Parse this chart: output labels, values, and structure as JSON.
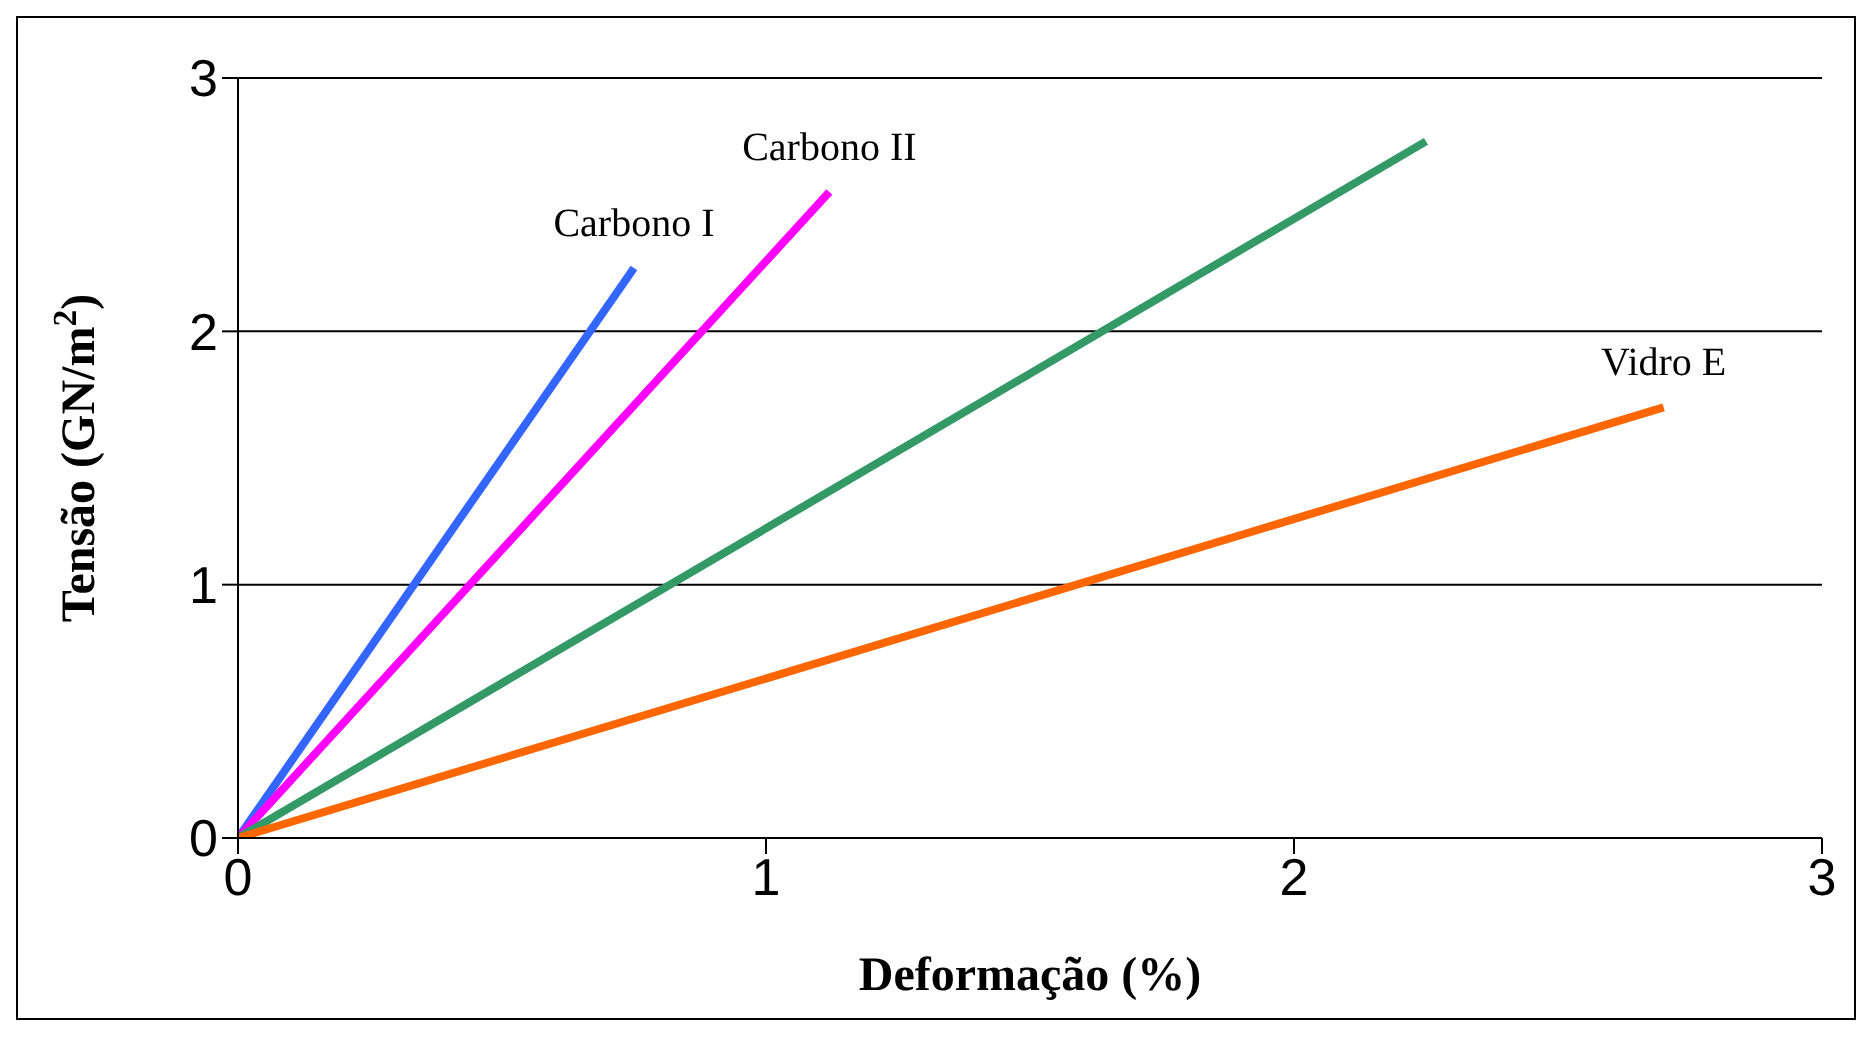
{
  "chart_data": {
    "type": "line",
    "xlabel": "Deformação (%)",
    "ylabel": "Tensão (GN/m$^{2}$)",
    "xlim": [
      0,
      3
    ],
    "xticks": [
      0,
      1,
      2,
      3
    ],
    "ylim": [
      0,
      3
    ],
    "yticks": [
      0,
      1,
      2,
      3
    ],
    "grid": "y",
    "legend": false,
    "marker": "none",
    "line_style": "solid",
    "series": [
      {
        "name": "Carbono I",
        "color": "#3366ff",
        "x": [
          0,
          0.75
        ],
        "values": [
          0,
          2.25
        ]
      },
      {
        "name": "Carbono II",
        "color": "#ff00ff",
        "x": [
          0,
          1.12
        ],
        "values": [
          0,
          2.55
        ]
      },
      {
        "color": "#339966",
        "x": [
          0,
          2.25
        ],
        "values": [
          0,
          2.75
        ]
      },
      {
        "name": "Vidro E",
        "color": "#ff6600",
        "x": [
          0,
          2.7
        ],
        "values": [
          0,
          1.7
        ]
      }
    ]
  }
}
